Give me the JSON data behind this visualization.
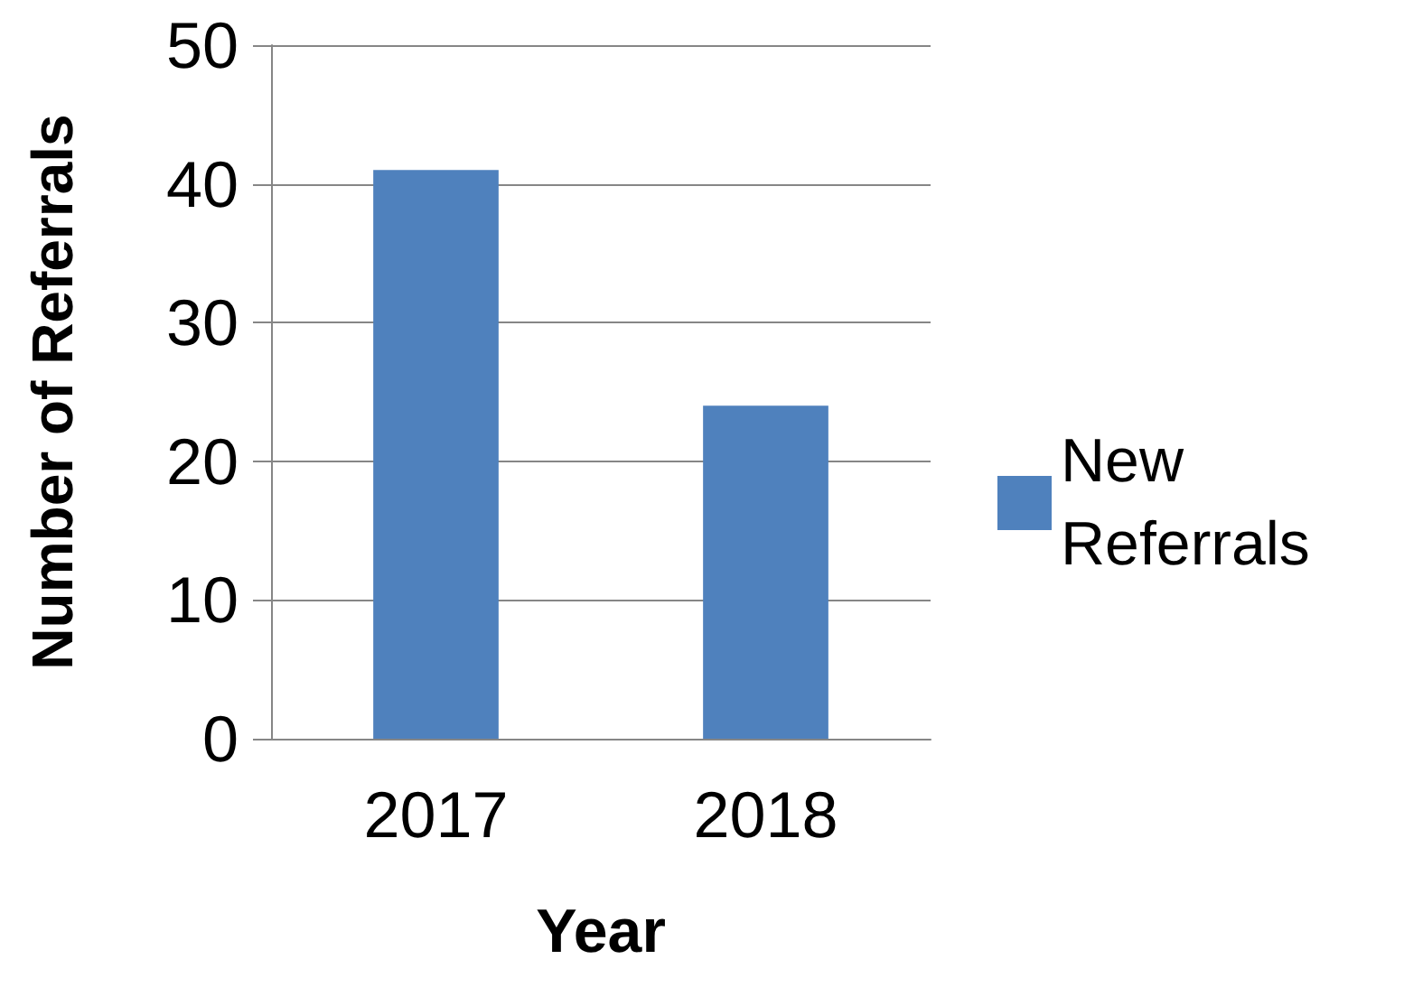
{
  "chart_data": {
    "type": "bar",
    "xlabel": "Year",
    "ylabel": "Number of Referrals",
    "categories": [
      "2017",
      "2018"
    ],
    "series": [
      {
        "name": "New Referrals",
        "color": "#4f81bd",
        "values": [
          41,
          24
        ]
      }
    ],
    "ylim": [
      0,
      50
    ],
    "yticks": [
      0,
      10,
      20,
      30,
      40,
      50
    ],
    "grid": "y",
    "legend": "right"
  }
}
